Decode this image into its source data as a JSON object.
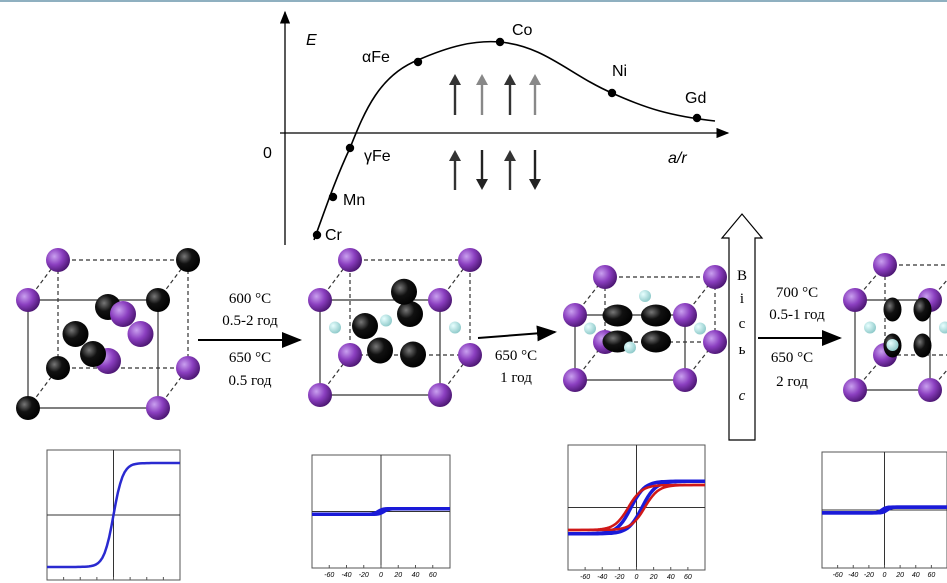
{
  "slater_curve": {
    "y_label": "E",
    "x_label": "a/r",
    "origin": "0",
    "elements": [
      "Cr",
      "Mn",
      "γFe",
      "αFe",
      "Co",
      "Ni",
      "Gd"
    ]
  },
  "transitions": [
    {
      "above": [
        "600 °C",
        "0.5-2 год"
      ],
      "below": [
        "650 °C",
        "0.5 год"
      ]
    },
    {
      "below": [
        "650 °C",
        "1 год"
      ]
    },
    {
      "above": [
        "700 °C",
        "0.5-1 год"
      ],
      "below": [
        "650 °C",
        "2 год"
      ]
    }
  ],
  "c_axis": {
    "letters": [
      "В",
      "і",
      "с",
      "ь"
    ],
    "symbol": "c"
  },
  "hysteresis": {
    "x_ticks": [
      "-60",
      "-40",
      "-20",
      "0",
      "20",
      "40",
      "60"
    ]
  }
}
